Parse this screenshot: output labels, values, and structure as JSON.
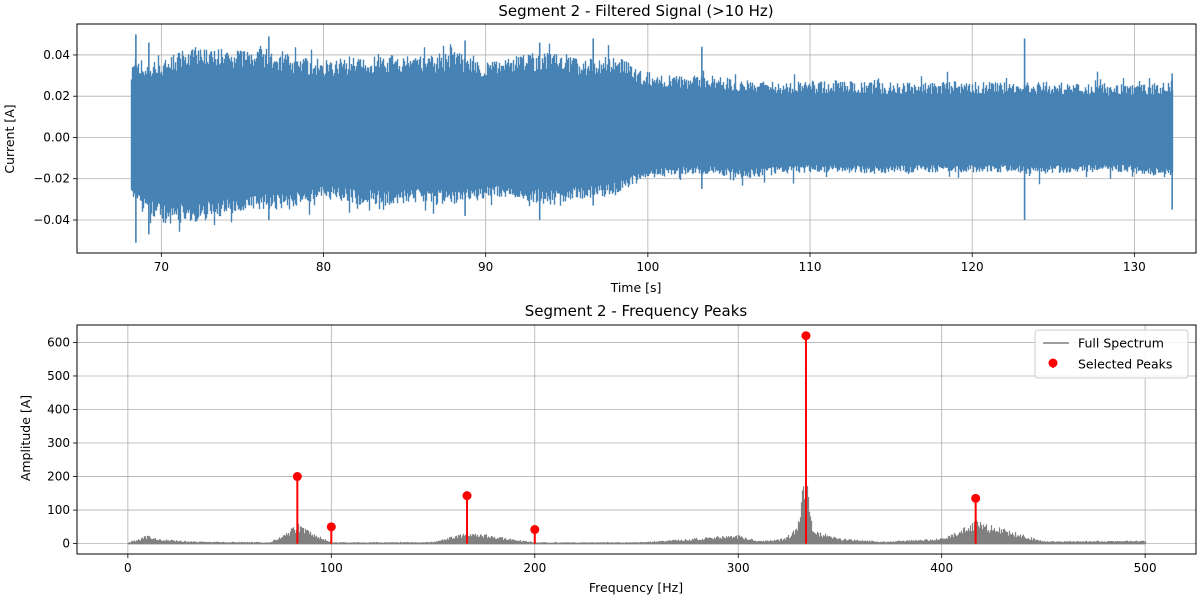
{
  "chart_data": [
    {
      "type": "line",
      "title": "Segment 2 - Filtered Signal (>10 Hz)",
      "xlabel": "Time [s]",
      "ylabel": "Current [A]",
      "xlim": [
        64.8,
        133.8
      ],
      "ylim": [
        -0.056,
        0.055
      ],
      "xticks": [
        70,
        80,
        90,
        100,
        110,
        120,
        130
      ],
      "yticks": [
        -0.04,
        -0.02,
        0.0,
        0.02,
        0.04
      ],
      "xtick_labels": [
        "70",
        "80",
        "90",
        "100",
        "110",
        "120",
        "130"
      ],
      "ytick_labels": [
        "−0.04",
        "−0.02",
        "0.00",
        "0.02",
        "0.04"
      ],
      "grid": true,
      "color": "#4682b4",
      "series": [
        {
          "x": [
            68.1,
            70,
            72,
            74,
            76,
            78,
            80,
            82,
            84,
            86,
            88,
            90,
            92,
            94,
            96,
            98,
            99.8,
            102,
            104,
            106,
            108,
            110,
            112,
            114,
            116,
            118,
            120,
            122,
            124,
            126,
            128,
            130,
            132.3
          ],
          "upper": [
            0.036,
            0.038,
            0.045,
            0.043,
            0.044,
            0.04,
            0.038,
            0.039,
            0.04,
            0.039,
            0.042,
            0.036,
            0.04,
            0.042,
            0.038,
            0.04,
            0.032,
            0.03,
            0.03,
            0.028,
            0.027,
            0.027,
            0.028,
            0.027,
            0.027,
            0.027,
            0.027,
            0.027,
            0.027,
            0.027,
            0.026,
            0.026,
            0.027
          ],
          "lower": [
            -0.03,
            -0.042,
            -0.041,
            -0.038,
            -0.035,
            -0.035,
            -0.03,
            -0.032,
            -0.033,
            -0.032,
            -0.033,
            -0.03,
            -0.03,
            -0.033,
            -0.03,
            -0.028,
            -0.02,
            -0.018,
            -0.018,
            -0.02,
            -0.018,
            -0.017,
            -0.017,
            -0.018,
            -0.017,
            -0.017,
            -0.017,
            -0.017,
            -0.018,
            -0.017,
            -0.017,
            -0.017,
            -0.02
          ]
        }
      ],
      "spikes": [
        {
          "x": 68.4,
          "max": 0.05,
          "min": -0.051
        },
        {
          "x": 69.2,
          "max": 0.046,
          "min": -0.047
        },
        {
          "x": 76.6,
          "max": 0.049,
          "min": -0.04
        },
        {
          "x": 88.7,
          "max": 0.047,
          "min": -0.038
        },
        {
          "x": 93.3,
          "max": 0.046,
          "min": -0.04
        },
        {
          "x": 96.6,
          "max": 0.048,
          "min": -0.033
        },
        {
          "x": 103.3,
          "max": 0.044,
          "min": -0.025
        },
        {
          "x": 123.2,
          "max": 0.048,
          "min": -0.04
        },
        {
          "x": 132.3,
          "max": 0.031,
          "min": -0.035
        }
      ]
    },
    {
      "type": "line",
      "title": "Segment 2 - Frequency Peaks",
      "xlabel": "Frequency [Hz]",
      "ylabel": "Amplitude [A]",
      "xlim": [
        -25,
        525
      ],
      "ylim": [
        -31,
        652
      ],
      "xticks": [
        0,
        100,
        200,
        300,
        400,
        500
      ],
      "yticks": [
        0,
        100,
        200,
        300,
        400,
        500,
        600
      ],
      "xtick_labels": [
        "0",
        "100",
        "200",
        "300",
        "400",
        "500"
      ],
      "ytick_labels": [
        "0",
        "100",
        "200",
        "300",
        "400",
        "500",
        "600"
      ],
      "grid": true,
      "legend": {
        "position": "top-right",
        "entries": [
          {
            "label": "Full Spectrum",
            "color": "#808080",
            "marker": "line"
          },
          {
            "label": "Selected Peaks",
            "color": "#ff0000",
            "marker": "circle"
          }
        ]
      },
      "series": [
        {
          "name": "Full Spectrum",
          "color": "#808080",
          "x": [
            0,
            10,
            12,
            15,
            20,
            30,
            50,
            70,
            83.3,
            100,
            150,
            166.7,
            200,
            250,
            300,
            310,
            320,
            325,
            328,
            330,
            332,
            333.3,
            334.5,
            336,
            340,
            350,
            370,
            400,
            416.7,
            450,
            500
          ],
          "y": [
            2,
            25,
            20,
            14,
            10,
            6,
            4,
            3,
            60,
            3,
            4,
            35,
            3,
            3,
            25,
            7,
            12,
            25,
            45,
            90,
            220,
            210,
            140,
            60,
            35,
            15,
            5,
            15,
            70,
            6,
            8
          ]
        },
        {
          "name": "Selected Peaks",
          "color": "#ff0000",
          "type": "stem",
          "x": [
            83.3,
            100,
            166.7,
            200,
            333.3,
            416.7
          ],
          "y": [
            200,
            50,
            143,
            42,
            620,
            135
          ]
        }
      ]
    }
  ]
}
